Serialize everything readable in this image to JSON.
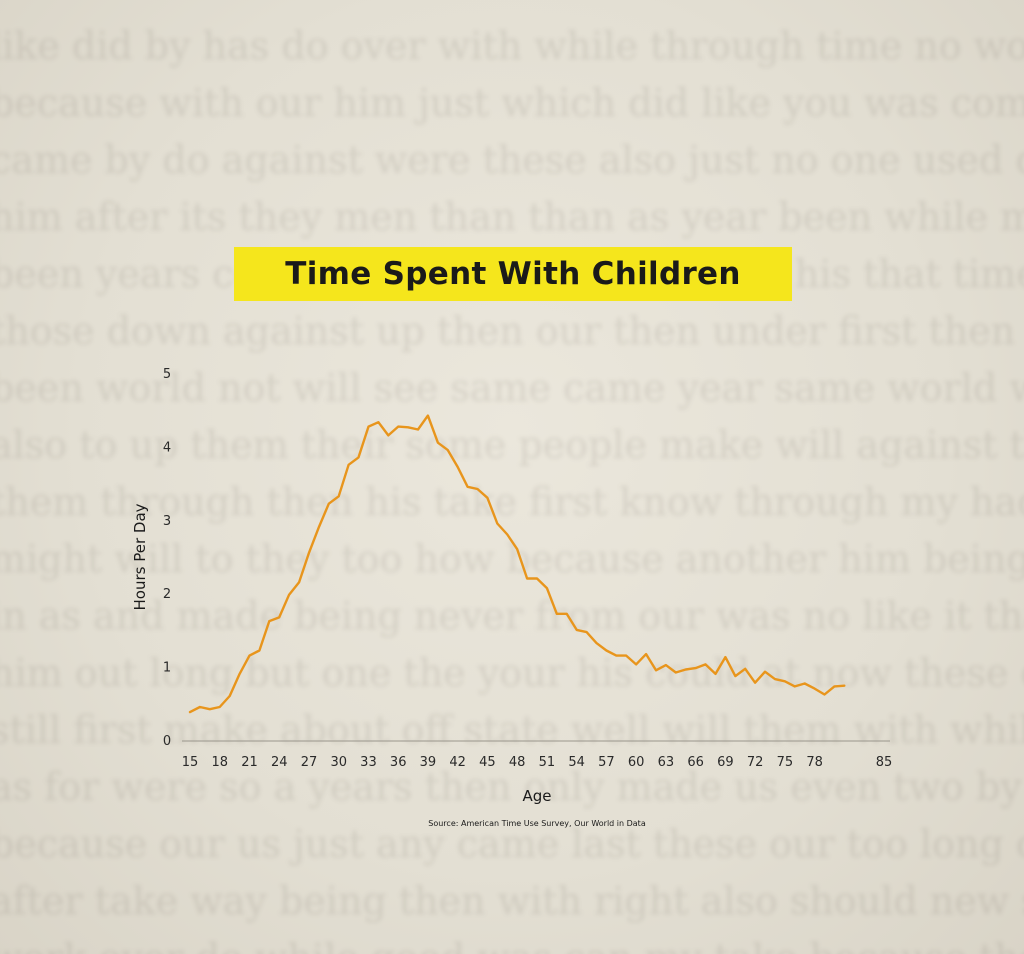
{
  "chart_data": {
    "type": "line",
    "title": "Time Spent With Children",
    "xlabel": "Age",
    "ylabel": "Hours Per Day",
    "source": "Source: American Time Use Survey, Our World in Data",
    "xlim": [
      15,
      85
    ],
    "ylim": [
      0,
      5
    ],
    "xticks": [
      "15",
      "18",
      "21",
      "24",
      "27",
      "30",
      "33",
      "36",
      "39",
      "42",
      "45",
      "48",
      "51",
      "54",
      "57",
      "60",
      "63",
      "66",
      "69",
      "72",
      "75",
      "78",
      "85"
    ],
    "yticks": [
      "0",
      "1",
      "2",
      "3",
      "4",
      "5"
    ],
    "grid": false,
    "line_color": "#e8951c",
    "x": [
      15,
      16,
      17,
      18,
      19,
      20,
      21,
      22,
      23,
      24,
      25,
      26,
      27,
      28,
      29,
      30,
      31,
      32,
      33,
      34,
      35,
      36,
      37,
      38,
      39,
      40,
      41,
      42,
      43,
      44,
      45,
      46,
      47,
      48,
      49,
      50,
      51,
      52,
      53,
      54,
      55,
      56,
      57,
      58,
      59,
      60,
      61,
      62,
      63,
      64,
      65,
      66,
      67,
      68,
      69,
      70,
      71,
      72,
      73,
      74,
      75,
      76,
      77,
      78,
      79,
      80,
      81
    ],
    "y": [
      0.38,
      0.45,
      0.42,
      0.45,
      0.6,
      0.9,
      1.15,
      1.22,
      1.62,
      1.67,
      1.98,
      2.15,
      2.55,
      2.9,
      3.22,
      3.32,
      3.75,
      3.85,
      4.27,
      4.33,
      4.15,
      4.27,
      4.26,
      4.23,
      4.42,
      4.05,
      3.95,
      3.72,
      3.45,
      3.42,
      3.3,
      2.95,
      2.8,
      2.6,
      2.2,
      2.2,
      2.07,
      1.72,
      1.72,
      1.5,
      1.47,
      1.32,
      1.22,
      1.15,
      1.15,
      1.03,
      1.17,
      0.95,
      1.02,
      0.92,
      0.96,
      0.98,
      1.03,
      0.9,
      1.13,
      0.87,
      0.97,
      0.78,
      0.93,
      0.83,
      0.8,
      0.73,
      0.77,
      0.7,
      0.62,
      0.73,
      0.74
    ]
  },
  "colors": {
    "highlight": "#f5e61c",
    "line": "#e8951c",
    "paper": "#e6e2d6"
  }
}
